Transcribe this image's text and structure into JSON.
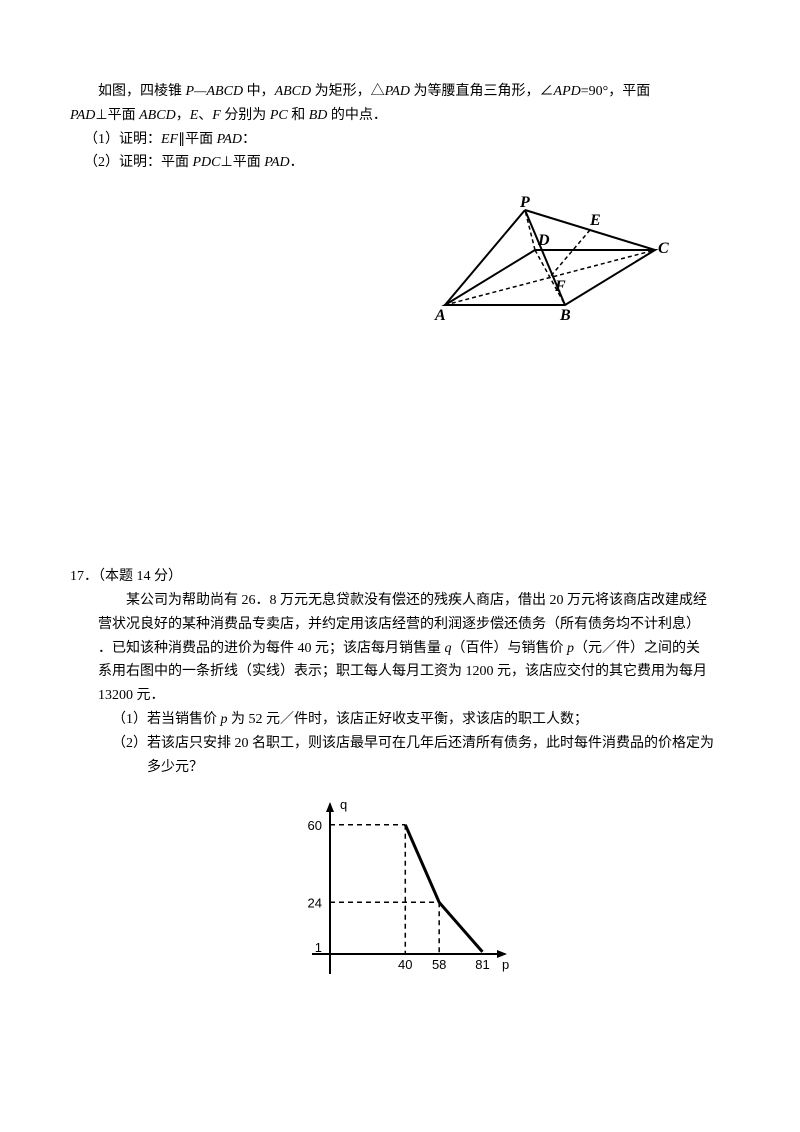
{
  "problem16": {
    "line1_a": "如图，四棱锥 ",
    "line1_var1": "P—ABCD",
    "line1_b": " 中，",
    "line1_var2": "ABCD",
    "line1_c": " 为矩形，△",
    "line1_var3": "PAD",
    "line1_d": " 为等腰直角三角形，∠",
    "line1_var4": "APD",
    "line1_e": "=90°，平面",
    "line2_var1": "PAD",
    "line2_a": "⊥平面 ",
    "line2_var2": "ABCD",
    "line2_b": "，",
    "line2_var3": "E",
    "line2_c": "、",
    "line2_var4": "F",
    "line2_d": " 分别为 ",
    "line2_var5": "PC",
    "line2_e": " 和 ",
    "line2_var6": "BD",
    "line2_f": " 的中点．",
    "sub1_a": "（1）证明：",
    "sub1_var1": "EF",
    "sub1_b": "∥平面 ",
    "sub1_var2": "PAD",
    "sub1_c": "：",
    "sub2_a": "（2）证明：平面 ",
    "sub2_var1": "PDC",
    "sub2_b": "⊥平面 ",
    "sub2_var2": "PAD",
    "sub2_c": "．",
    "fig_labels": {
      "P": "P",
      "A": "A",
      "B": "B",
      "C": "C",
      "D": "D",
      "E": "E",
      "F": "F"
    }
  },
  "problem17": {
    "header": "17．（本题 14 分）",
    "line1": "某公司为帮助尚有 26．8 万元无息贷款没有偿还的残疾人商店，借出 20 万元将该商店改建成经",
    "line2_a": "营状况良好的某种消费品专卖店，并约定用该店经营的利润逐步偿还债务（所有债务均不计利息）",
    "line3_a": "．已知该种消费品的进价为每件 40 元；该店每月销售量 ",
    "line3_var1": "q",
    "line3_b": "（百件）与销售价 ",
    "line3_var2": "p",
    "line3_c": "（元／件）之间的关",
    "line4_a": "系用右图中的一条折线（实线）表示；职工每人每月工资为 1200 元，该店应交付的其它费用为每月",
    "line5": "13200 元．",
    "sub1_a": "（1）若当销售价 ",
    "sub1_var1": "p",
    "sub1_b": " 为 52 元／件时，该店正好收支平衡，求该店的职工人数；",
    "sub2_a": "（2）若该店只安排 20 名职工，则该店最早可在几年后还清所有债务，此时每件消费品的价格定为",
    "sub2_b": "多少元？",
    "chart": {
      "y_label": "q",
      "x_label": "p",
      "y_ticks": [
        "60",
        "24",
        "1"
      ],
      "x_ticks": [
        "40",
        "58",
        "81"
      ],
      "points": [
        [
          40,
          60
        ],
        [
          58,
          24
        ],
        [
          81,
          1
        ]
      ],
      "axis_color": "#000000",
      "line_color": "#000000",
      "dash_color": "#000000"
    }
  }
}
